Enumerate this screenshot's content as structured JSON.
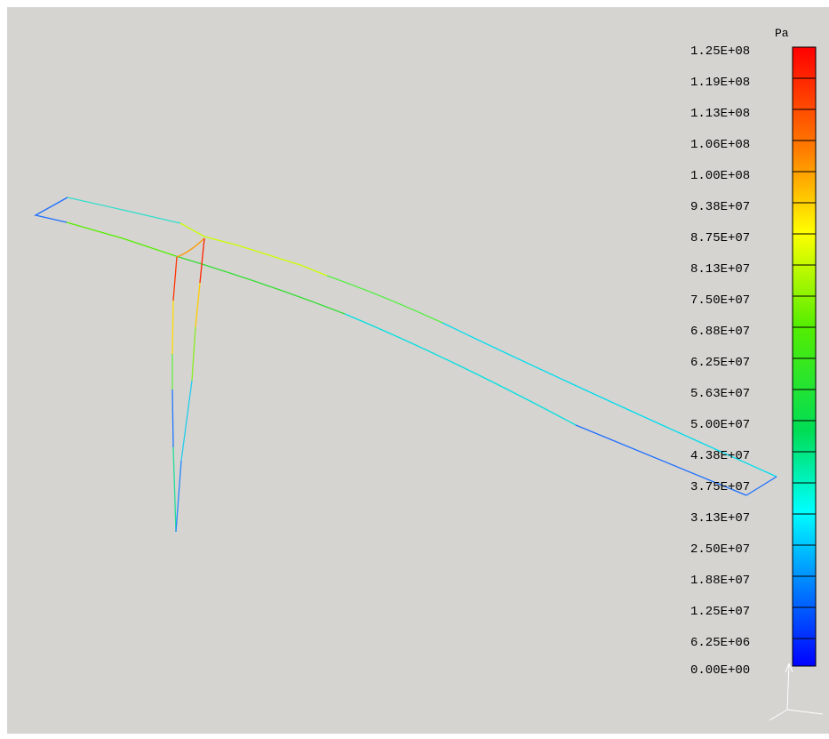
{
  "legend": {
    "unit": "Pa",
    "labels": [
      "1.25E+08",
      "1.19E+08",
      "1.13E+08",
      "1.06E+08",
      "1.00E+08",
      "9.38E+07",
      "8.75E+07",
      "8.13E+07",
      "7.50E+07",
      "6.88E+07",
      "6.25E+07",
      "5.63E+07",
      "5.00E+07",
      "4.38E+07",
      "3.75E+07",
      "3.13E+07",
      "2.50E+07",
      "1.88E+07",
      "1.25E+07",
      "6.25E+06",
      "0.00E+00"
    ],
    "colors": {
      "top": "#ff0000",
      "upper": "#ffaa00",
      "mid_upper": "#ffff00",
      "mid": "#00dd00",
      "mid_lower": "#00ffff",
      "lower": "#0077ff",
      "bottom": "#0000ff"
    }
  },
  "colors": {
    "background": "#d5d4d0",
    "legend_tick": "#000000",
    "triad": "#ffffff"
  }
}
